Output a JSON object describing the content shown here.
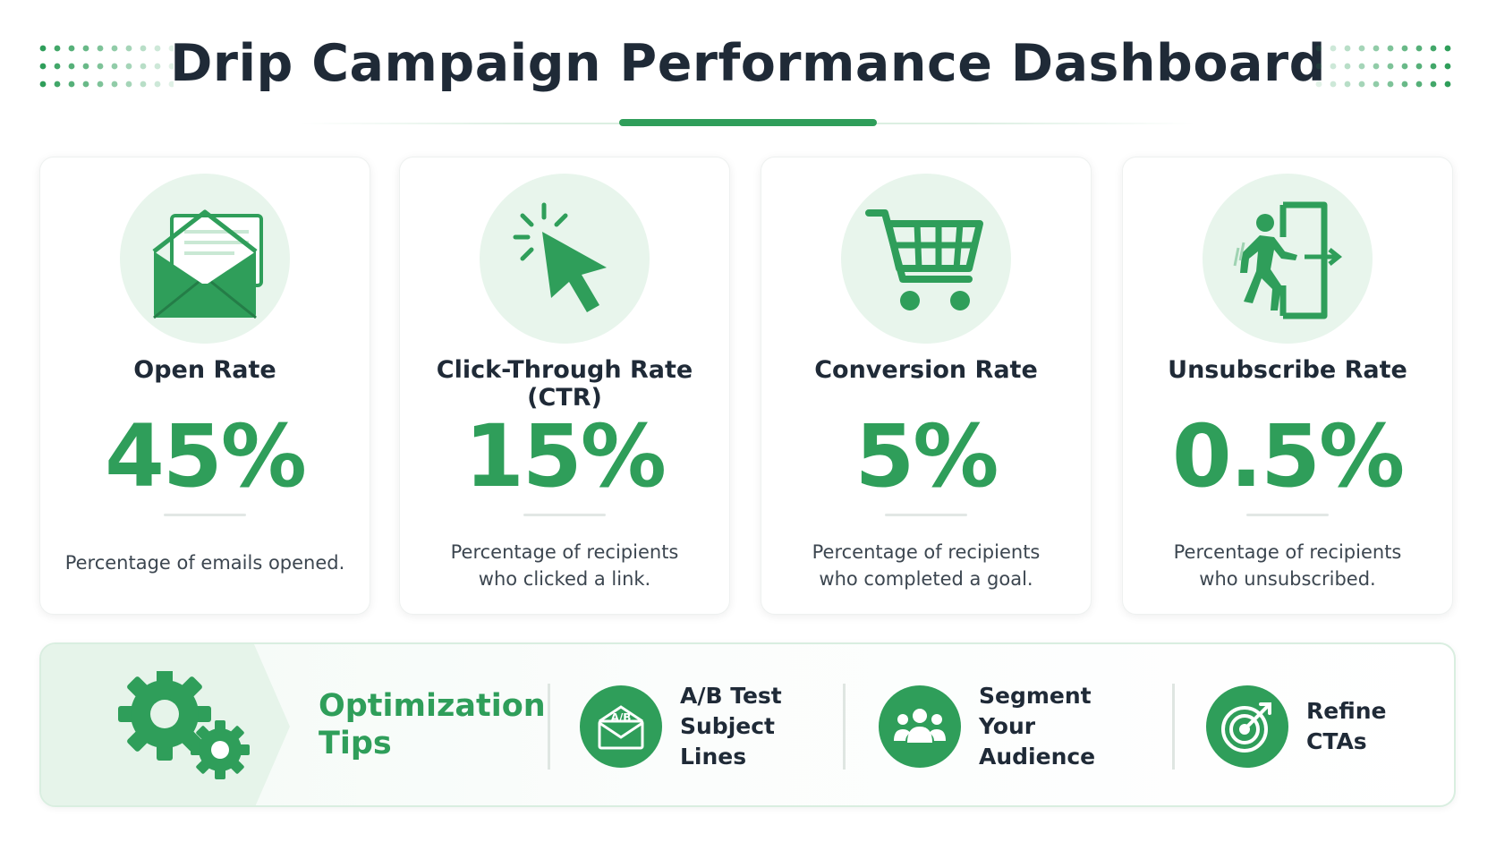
{
  "header": {
    "title": "Drip Campaign Performance Dashboard"
  },
  "colors": {
    "accent": "#2f9e5a",
    "accent_light": "#e8f5ec",
    "text_dark": "#1f2a37"
  },
  "metrics": [
    {
      "title": "Open Rate",
      "value": "45%",
      "description": "Percentage of emails opened.",
      "icon": "envelope-icon"
    },
    {
      "title": "Click-Through Rate (CTR)",
      "value": "15%",
      "description_line1": "Percentage of recipients",
      "description_line2": "who clicked a link.",
      "icon": "cursor-click-icon"
    },
    {
      "title": "Conversion Rate",
      "value": "5%",
      "description_line1": "Percentage of recipients",
      "description_line2": "who completed a goal.",
      "icon": "shopping-cart-icon"
    },
    {
      "title": "Unsubscribe Rate",
      "value": "0.5%",
      "description_line1": "Percentage of recipients",
      "description_line2": "who unsubscribed.",
      "icon": "exit-door-icon"
    }
  ],
  "optimization": {
    "title_line1": "Optimization",
    "title_line2": "Tips",
    "icon": "gears-icon",
    "tips": [
      {
        "line1": "A/B Test",
        "line2": "Subject Lines",
        "icon": "ab-test-envelope-icon",
        "icon_text": "A/B"
      },
      {
        "line1": "Segment Your",
        "line2": "Audience",
        "icon": "audience-group-icon"
      },
      {
        "line1": "Refine",
        "line2": "CTAs",
        "icon": "target-icon"
      }
    ]
  }
}
